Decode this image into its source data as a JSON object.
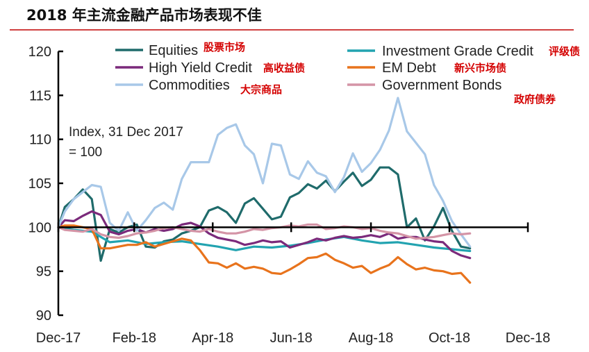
{
  "header": {
    "title": "2018 年主流金融产品市场表现不佳"
  },
  "colors": {
    "title_rule": "#c00000",
    "axis": "#000000",
    "cn_label": "#d40000"
  },
  "chart_data": {
    "type": "line",
    "title": "2018 年主流金融产品市场表现不佳",
    "annotation_lines": [
      "Index, 31 Dec 2017",
      "= 100"
    ],
    "xlabel": "",
    "ylabel": "",
    "x_range": [
      "2017-12-31",
      "2018-12-31"
    ],
    "ylim": [
      90,
      120
    ],
    "y_ticks": [
      90,
      95,
      100,
      105,
      110,
      115,
      120
    ],
    "x_ticks": [
      {
        "label": "Dec-17",
        "date": "2017-12-31"
      },
      {
        "label": "Feb-18",
        "date": "2018-02-28"
      },
      {
        "label": "Apr-18",
        "date": "2018-04-30"
      },
      {
        "label": "Jun-18",
        "date": "2018-06-30"
      },
      {
        "label": "Aug-18",
        "date": "2018-08-31"
      },
      {
        "label": "Oct-18",
        "date": "2018-10-31"
      },
      {
        "label": "Dec-18",
        "date": "2018-12-31"
      }
    ],
    "reference_line": 100,
    "grid": false,
    "legend_position": "top",
    "series": [
      {
        "name": "Equities",
        "name_cn": "股票市场",
        "color": "#1f6b6b",
        "dates": [
          "2017-12-31",
          "2018-01-05",
          "2018-01-12",
          "2018-01-19",
          "2018-01-26",
          "2018-02-02",
          "2018-02-09",
          "2018-02-16",
          "2018-02-23",
          "2018-03-02",
          "2018-03-09",
          "2018-03-16",
          "2018-03-23",
          "2018-03-30",
          "2018-04-06",
          "2018-04-13",
          "2018-04-20",
          "2018-04-27",
          "2018-05-04",
          "2018-05-11",
          "2018-05-18",
          "2018-05-25",
          "2018-06-01",
          "2018-06-08",
          "2018-06-15",
          "2018-06-22",
          "2018-06-29",
          "2018-07-06",
          "2018-07-13",
          "2018-07-20",
          "2018-07-27",
          "2018-08-03",
          "2018-08-10",
          "2018-08-17",
          "2018-08-24",
          "2018-08-31",
          "2018-09-07",
          "2018-09-14",
          "2018-09-21",
          "2018-09-28",
          "2018-10-05",
          "2018-10-12",
          "2018-10-19",
          "2018-10-26",
          "2018-11-02",
          "2018-11-09",
          "2018-11-16"
        ],
        "values": [
          100,
          102.3,
          103.2,
          104.3,
          103.2,
          96.2,
          99.8,
          99.4,
          100.0,
          100.3,
          97.8,
          97.7,
          98.4,
          98.6,
          99.3,
          99.6,
          100.0,
          101.9,
          102.3,
          101.7,
          100.5,
          102.7,
          103.3,
          102.1,
          100.9,
          101.2,
          103.4,
          103.9,
          104.9,
          104.4,
          105.3,
          104.1,
          105.2,
          106.2,
          104.7,
          105.4,
          106.8,
          106.8,
          106.0,
          100.0,
          101.0,
          98.5,
          100.1,
          102.2,
          99.6,
          97.8,
          97.6
        ]
      },
      {
        "name": "Investment Grade Credit",
        "name_cn": "评级债",
        "color": "#22a3b0",
        "dates": [
          "2017-12-31",
          "2018-01-12",
          "2018-01-26",
          "2018-02-09",
          "2018-02-23",
          "2018-03-09",
          "2018-03-23",
          "2018-04-06",
          "2018-04-20",
          "2018-05-04",
          "2018-05-18",
          "2018-06-01",
          "2018-06-15",
          "2018-06-29",
          "2018-07-13",
          "2018-07-27",
          "2018-08-10",
          "2018-08-24",
          "2018-09-07",
          "2018-09-21",
          "2018-10-05",
          "2018-10-19",
          "2018-11-02",
          "2018-11-16"
        ],
        "values": [
          100,
          99.7,
          99.5,
          98.3,
          98.5,
          98.1,
          98.3,
          98.4,
          98.1,
          97.8,
          97.4,
          97.8,
          97.7,
          97.9,
          98.2,
          98.6,
          98.9,
          98.5,
          98.2,
          98.3,
          98.0,
          97.7,
          97.5,
          97.3
        ]
      },
      {
        "name": "High Yield Credit",
        "name_cn": "高收益债",
        "color": "#7b2a7b",
        "dates": [
          "2017-12-31",
          "2018-01-05",
          "2018-01-12",
          "2018-01-19",
          "2018-01-26",
          "2018-02-02",
          "2018-02-09",
          "2018-02-16",
          "2018-02-23",
          "2018-03-02",
          "2018-03-09",
          "2018-03-16",
          "2018-03-23",
          "2018-03-30",
          "2018-04-06",
          "2018-04-13",
          "2018-04-20",
          "2018-04-27",
          "2018-05-04",
          "2018-05-11",
          "2018-05-18",
          "2018-05-25",
          "2018-06-01",
          "2018-06-08",
          "2018-06-15",
          "2018-06-22",
          "2018-06-29",
          "2018-07-06",
          "2018-07-13",
          "2018-07-20",
          "2018-07-27",
          "2018-08-03",
          "2018-08-10",
          "2018-08-17",
          "2018-08-24",
          "2018-08-31",
          "2018-09-07",
          "2018-09-14",
          "2018-09-21",
          "2018-09-28",
          "2018-10-05",
          "2018-10-12",
          "2018-10-19",
          "2018-10-26",
          "2018-11-02",
          "2018-11-09",
          "2018-11-16"
        ],
        "values": [
          100,
          100.8,
          100.7,
          101.3,
          101.8,
          101.4,
          99.5,
          99.2,
          99.6,
          99.8,
          99.4,
          99.8,
          99.6,
          99.8,
          100.3,
          100.5,
          100.1,
          99.3,
          98.8,
          98.6,
          98.4,
          98.0,
          98.2,
          98.5,
          98.3,
          98.4,
          97.7,
          98.0,
          98.3,
          98.7,
          98.5,
          98.8,
          99.0,
          98.8,
          98.9,
          99.1,
          98.9,
          99.3,
          98.7,
          98.9,
          98.9,
          98.6,
          98.4,
          98.3,
          97.3,
          96.8,
          96.5
        ]
      },
      {
        "name": "EM Debt",
        "name_cn": "新兴市场债",
        "color": "#e8731c",
        "dates": [
          "2017-12-31",
          "2018-01-05",
          "2018-01-12",
          "2018-01-19",
          "2018-01-26",
          "2018-02-02",
          "2018-02-09",
          "2018-02-16",
          "2018-02-23",
          "2018-03-02",
          "2018-03-09",
          "2018-03-16",
          "2018-03-23",
          "2018-03-30",
          "2018-04-06",
          "2018-04-13",
          "2018-04-20",
          "2018-04-27",
          "2018-05-04",
          "2018-05-11",
          "2018-05-18",
          "2018-05-25",
          "2018-06-01",
          "2018-06-08",
          "2018-06-15",
          "2018-06-22",
          "2018-06-29",
          "2018-07-06",
          "2018-07-13",
          "2018-07-20",
          "2018-07-27",
          "2018-08-03",
          "2018-08-10",
          "2018-08-17",
          "2018-08-24",
          "2018-08-31",
          "2018-09-07",
          "2018-09-14",
          "2018-09-21",
          "2018-09-28",
          "2018-10-05",
          "2018-10-12",
          "2018-10-19",
          "2018-10-26",
          "2018-11-02",
          "2018-11-09",
          "2018-11-16"
        ],
        "values": [
          100,
          100.2,
          100.2,
          100.0,
          99.8,
          97.6,
          97.6,
          97.8,
          98.0,
          98.0,
          98.3,
          97.8,
          98.1,
          98.4,
          98.7,
          98.5,
          97.4,
          96.0,
          95.9,
          95.4,
          95.9,
          95.3,
          95.5,
          95.3,
          94.8,
          94.7,
          95.2,
          95.8,
          96.5,
          96.6,
          97.0,
          96.3,
          95.9,
          95.4,
          95.6,
          94.8,
          95.3,
          95.7,
          96.6,
          95.8,
          95.2,
          95.4,
          95.1,
          95.0,
          94.7,
          94.8,
          93.7
        ]
      },
      {
        "name": "Commodities",
        "name_cn": "大宗商品",
        "color": "#a8c8e8",
        "dates": [
          "2017-12-31",
          "2018-01-05",
          "2018-01-12",
          "2018-01-19",
          "2018-01-26",
          "2018-02-02",
          "2018-02-09",
          "2018-02-16",
          "2018-02-23",
          "2018-03-02",
          "2018-03-09",
          "2018-03-16",
          "2018-03-23",
          "2018-03-30",
          "2018-04-06",
          "2018-04-13",
          "2018-04-20",
          "2018-04-27",
          "2018-05-04",
          "2018-05-11",
          "2018-05-18",
          "2018-05-25",
          "2018-06-01",
          "2018-06-08",
          "2018-06-15",
          "2018-06-22",
          "2018-06-29",
          "2018-07-06",
          "2018-07-13",
          "2018-07-20",
          "2018-07-27",
          "2018-08-03",
          "2018-08-10",
          "2018-08-17",
          "2018-08-24",
          "2018-08-31",
          "2018-09-07",
          "2018-09-14",
          "2018-09-21",
          "2018-09-28",
          "2018-10-05",
          "2018-10-12",
          "2018-10-19",
          "2018-10-26",
          "2018-11-02",
          "2018-11-09",
          "2018-11-16"
        ],
        "values": [
          100,
          101.8,
          103.2,
          104.0,
          104.8,
          104.6,
          100.5,
          99.6,
          101.7,
          99.6,
          100.8,
          102.2,
          102.8,
          102.0,
          105.5,
          107.4,
          107.4,
          107.4,
          110.5,
          111.3,
          111.7,
          109.3,
          108.3,
          105.0,
          109.5,
          109.3,
          106.0,
          105.5,
          107.5,
          106.2,
          105.8,
          104.0,
          105.7,
          108.4,
          106.3,
          107.3,
          108.8,
          111.0,
          114.7,
          110.9,
          109.6,
          108.3,
          104.8,
          103.0,
          100.7,
          99.2,
          97.8
        ]
      },
      {
        "name": "Government Bonds",
        "name_cn": "政府债券",
        "color": "#d494a6",
        "dates": [
          "2017-12-31",
          "2018-01-05",
          "2018-01-12",
          "2018-01-19",
          "2018-01-26",
          "2018-02-02",
          "2018-02-09",
          "2018-02-16",
          "2018-02-23",
          "2018-03-02",
          "2018-03-09",
          "2018-03-16",
          "2018-03-23",
          "2018-03-30",
          "2018-04-06",
          "2018-04-13",
          "2018-04-20",
          "2018-04-27",
          "2018-05-04",
          "2018-05-11",
          "2018-05-18",
          "2018-05-25",
          "2018-06-01",
          "2018-06-08",
          "2018-06-15",
          "2018-06-22",
          "2018-06-29",
          "2018-07-06",
          "2018-07-13",
          "2018-07-20",
          "2018-07-27",
          "2018-08-03",
          "2018-08-10",
          "2018-08-17",
          "2018-08-24",
          "2018-08-31",
          "2018-09-07",
          "2018-09-14",
          "2018-09-21",
          "2018-09-28",
          "2018-10-05",
          "2018-10-12",
          "2018-10-19",
          "2018-10-26",
          "2018-11-02",
          "2018-11-09",
          "2018-11-16"
        ],
        "values": [
          100,
          99.7,
          99.6,
          99.5,
          99.8,
          99.2,
          98.9,
          98.8,
          99.0,
          99.3,
          99.4,
          99.6,
          99.9,
          100.0,
          99.8,
          99.6,
          99.5,
          99.8,
          99.5,
          99.3,
          99.3,
          99.5,
          99.8,
          99.7,
          99.9,
          100.0,
          100.2,
          100.1,
          100.3,
          100.3,
          99.8,
          99.9,
          100.1,
          100.0,
          99.8,
          99.9,
          99.6,
          99.4,
          99.3,
          99.0,
          98.7,
          98.8,
          98.9,
          99.1,
          99.3,
          99.2,
          99.3
        ]
      }
    ]
  }
}
